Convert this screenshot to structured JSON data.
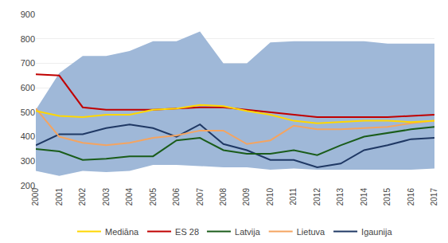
{
  "chart_data": {
    "type": "line",
    "x": [
      2000,
      2001,
      2002,
      2003,
      2004,
      2005,
      2006,
      2007,
      2008,
      2009,
      2010,
      2011,
      2012,
      2013,
      2014,
      2015,
      2016,
      2017
    ],
    "xlim": [
      2000,
      2017
    ],
    "xticks": [
      2000,
      2001,
      2002,
      2003,
      2004,
      2005,
      2006,
      2007,
      2008,
      2009,
      2010,
      2011,
      2012,
      2013,
      2014,
      2015,
      2016,
      2017
    ],
    "ylim": [
      200,
      900
    ],
    "yticks": [
      200,
      300,
      400,
      500,
      600,
      700,
      800,
      900
    ],
    "grid": true,
    "legend": "bottom",
    "series": [
      {
        "type": "band",
        "color": "#9fb8d8",
        "lower": [
          260,
          240,
          260,
          255,
          260,
          285,
          285,
          280,
          275,
          275,
          265,
          270,
          265,
          265,
          265,
          265,
          265,
          270
        ],
        "upper": [
          510,
          660,
          730,
          730,
          750,
          790,
          790,
          830,
          700,
          700,
          785,
          790,
          790,
          790,
          790,
          780,
          780,
          780
        ]
      },
      {
        "name": "Igaunija",
        "color": "#1f3864",
        "values": [
          365,
          410,
          410,
          435,
          450,
          435,
          400,
          450,
          370,
          345,
          305,
          305,
          275,
          290,
          345,
          365,
          390,
          395
        ]
      },
      {
        "name": "Lietuva",
        "color": "#f4a460",
        "values": [
          515,
          400,
          375,
          365,
          375,
          395,
          405,
          425,
          425,
          370,
          385,
          445,
          430,
          430,
          435,
          440,
          455,
          465
        ]
      },
      {
        "name": "Latvija",
        "color": "#1a5c1a",
        "values": [
          350,
          340,
          305,
          310,
          320,
          320,
          385,
          395,
          345,
          330,
          330,
          345,
          325,
          365,
          400,
          415,
          430,
          440
        ]
      },
      {
        "name": "ES 28",
        "color": "#c00000",
        "values": [
          655,
          650,
          520,
          510,
          510,
          510,
          515,
          520,
          520,
          510,
          500,
          490,
          480,
          480,
          480,
          480,
          485,
          490
        ]
      },
      {
        "name": "Mediāna",
        "color": "#ffd700",
        "values": [
          505,
          485,
          480,
          490,
          490,
          510,
          515,
          530,
          525,
          505,
          490,
          465,
          455,
          460,
          465,
          465,
          460,
          465
        ]
      }
    ]
  }
}
